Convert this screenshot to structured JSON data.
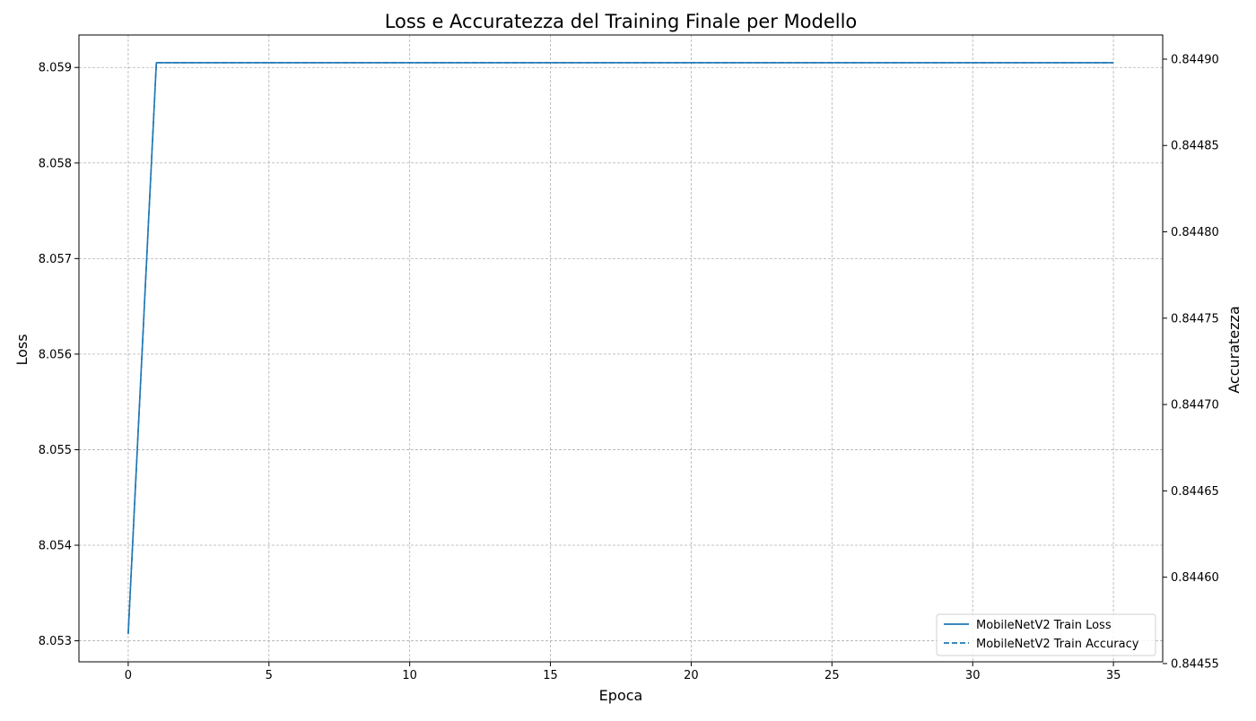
{
  "chart_data": {
    "type": "line",
    "title": "Loss e Accuratezza del Training Finale per Modello",
    "xlabel": "Epoca",
    "ylabel": "Loss",
    "y2label": "Accuratezza",
    "xlim": [
      -1.75,
      36.75
    ],
    "ylim": [
      8.05278,
      8.05934
    ],
    "y2lim": [
      0.844551,
      0.844914
    ],
    "xticks": [
      0,
      5,
      10,
      15,
      20,
      25,
      30,
      35
    ],
    "yticks": [
      8.053,
      8.054,
      8.055,
      8.056,
      8.057,
      8.058,
      8.059
    ],
    "ytick_labels": [
      "8.053",
      "8.054",
      "8.055",
      "8.056",
      "8.057",
      "8.058",
      "8.059"
    ],
    "y2ticks": [
      0.84455,
      0.8446,
      0.84465,
      0.8447,
      0.84475,
      0.8448,
      0.84485,
      0.8449
    ],
    "y2tick_labels": [
      "0.84455",
      "0.84460",
      "0.84465",
      "0.84470",
      "0.84475",
      "0.84480",
      "0.84485",
      "0.84490"
    ],
    "grid": true,
    "legend_position": "lower-right",
    "colors": {
      "series": "#1f77b4",
      "grid": "#b0b0b0"
    },
    "series": [
      {
        "name": "MobileNetV2 Train Loss",
        "axis": "left",
        "style": "solid",
        "x": [
          0,
          1,
          2,
          3,
          4,
          5,
          6,
          7,
          8,
          9,
          10,
          11,
          12,
          13,
          14,
          15,
          16,
          17,
          18,
          19,
          20,
          21,
          22,
          23,
          24,
          25,
          26,
          27,
          28,
          29,
          30,
          31,
          32,
          33,
          34,
          35
        ],
        "values": [
          8.05308,
          8.05905,
          8.05905,
          8.05905,
          8.05905,
          8.05905,
          8.05905,
          8.05905,
          8.05905,
          8.05905,
          8.05905,
          8.05905,
          8.05905,
          8.05905,
          8.05905,
          8.05905,
          8.05905,
          8.05905,
          8.05905,
          8.05905,
          8.05905,
          8.05905,
          8.05905,
          8.05905,
          8.05905,
          8.05905,
          8.05905,
          8.05905,
          8.05905,
          8.05905,
          8.05905,
          8.05905,
          8.05905,
          8.05905,
          8.05905,
          8.05905
        ]
      },
      {
        "name": "MobileNetV2 Train Accuracy",
        "axis": "right",
        "style": "dashed",
        "x": [
          0,
          1,
          2,
          3,
          4,
          5,
          6,
          7,
          8,
          9,
          10,
          11,
          12,
          13,
          14,
          15,
          16,
          17,
          18,
          19,
          20,
          21,
          22,
          23,
          24,
          25,
          26,
          27,
          28,
          29,
          30,
          31,
          32,
          33,
          34,
          35
        ],
        "values": [
          0.844567,
          0.844898,
          0.844898,
          0.844898,
          0.844898,
          0.844898,
          0.844898,
          0.844898,
          0.844898,
          0.844898,
          0.844898,
          0.844898,
          0.844898,
          0.844898,
          0.844898,
          0.844898,
          0.844898,
          0.844898,
          0.844898,
          0.844898,
          0.844898,
          0.844898,
          0.844898,
          0.844898,
          0.844898,
          0.844898,
          0.844898,
          0.844898,
          0.844898,
          0.844898,
          0.844898,
          0.844898,
          0.844898,
          0.844898,
          0.844898,
          0.844898
        ]
      }
    ]
  }
}
